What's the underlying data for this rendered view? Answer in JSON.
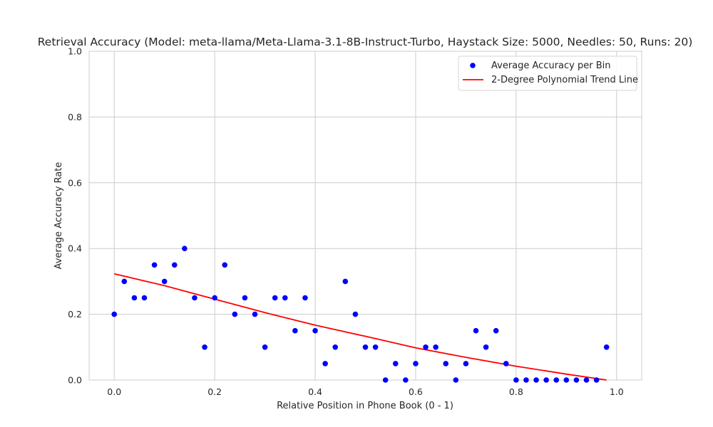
{
  "chart_data": {
    "type": "scatter",
    "title": "Retrieval Accuracy (Model: meta-llama/Meta-Llama-3.1-8B-Instruct-Turbo, Haystack Size: 5000, Needles: 50, Runs: 20)",
    "xlabel": "Relative Position in Phone Book (0 - 1)",
    "ylabel": "Average Accuracy Rate",
    "xlim": [
      -0.05,
      1.05
    ],
    "ylim": [
      0.0,
      1.0
    ],
    "xticks": [
      "0.0",
      "0.2",
      "0.4",
      "0.6",
      "0.8",
      "1.0"
    ],
    "yticks": [
      "0.0",
      "0.2",
      "0.4",
      "0.6",
      "0.8",
      "1.0"
    ],
    "grid": true,
    "legend_position": "top-right",
    "series": [
      {
        "name": "Average Accuracy per Bin",
        "kind": "scatter",
        "color": "#0000ff",
        "x": [
          0.0,
          0.02,
          0.04,
          0.06,
          0.08,
          0.1,
          0.12,
          0.14,
          0.16,
          0.18,
          0.2,
          0.22,
          0.24,
          0.26,
          0.28,
          0.3,
          0.32,
          0.34,
          0.36,
          0.38,
          0.4,
          0.42,
          0.44,
          0.46,
          0.48,
          0.5,
          0.52,
          0.54,
          0.56,
          0.58,
          0.6,
          0.62,
          0.64,
          0.66,
          0.68,
          0.7,
          0.72,
          0.74,
          0.76,
          0.78,
          0.8,
          0.82,
          0.84,
          0.86,
          0.88,
          0.9,
          0.92,
          0.94,
          0.96,
          0.98
        ],
        "y": [
          0.2,
          0.3,
          0.25,
          0.25,
          0.35,
          0.3,
          0.35,
          0.4,
          0.25,
          0.1,
          0.25,
          0.35,
          0.2,
          0.25,
          0.2,
          0.1,
          0.25,
          0.25,
          0.15,
          0.25,
          0.15,
          0.05,
          0.1,
          0.3,
          0.2,
          0.1,
          0.1,
          0.0,
          0.05,
          0.0,
          0.05,
          0.1,
          0.1,
          0.05,
          0.0,
          0.05,
          0.15,
          0.1,
          0.15,
          0.05,
          0.0,
          0.0,
          0.0,
          0.0,
          0.0,
          0.0,
          0.0,
          0.0,
          0.0,
          0.1
        ]
      },
      {
        "name": "2-Degree Polynomial Trend Line",
        "kind": "line",
        "color": "#ff0000",
        "x": [
          0.0,
          0.1,
          0.2,
          0.3,
          0.4,
          0.5,
          0.6,
          0.7,
          0.8,
          0.9,
          0.98
        ],
        "y": [
          0.323,
          0.287,
          0.246,
          0.205,
          0.167,
          0.133,
          0.098,
          0.069,
          0.042,
          0.018,
          0.0
        ]
      }
    ]
  }
}
